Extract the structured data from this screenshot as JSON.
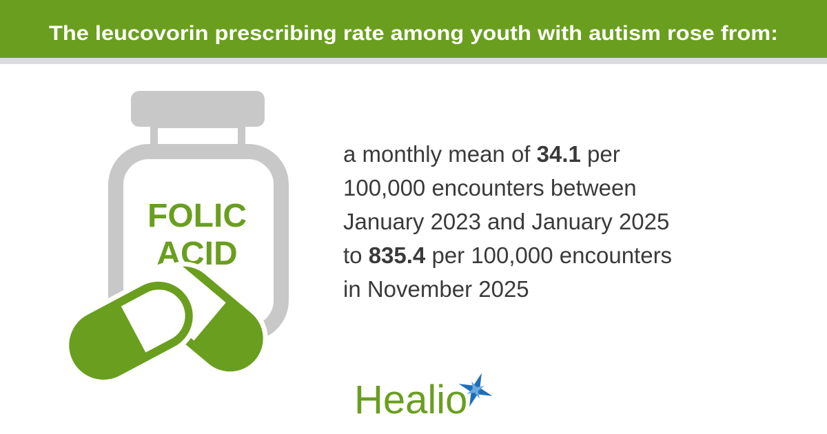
{
  "header": {
    "title": "The leucovorin prescribing rate among youth with autism rose from:"
  },
  "bottle": {
    "label": [
      "FOLIC",
      "ACID"
    ]
  },
  "body": {
    "lines": [
      [
        {
          "text": "a monthly mean of ",
          "bold": false
        },
        {
          "text": "34.1",
          "bold": true
        },
        {
          "text": " per",
          "bold": false
        }
      ],
      [
        {
          "text": "100,000 encounters between",
          "bold": false
        }
      ],
      [
        {
          "text": "January 2023 and January 2025",
          "bold": false
        }
      ],
      [
        {
          "text": "to ",
          "bold": false
        },
        {
          "text": "835.4",
          "bold": true
        },
        {
          "text": " per 100,000 encounters",
          "bold": false
        }
      ],
      [
        {
          "text": "in November 2025",
          "bold": false
        }
      ]
    ]
  },
  "logo": {
    "text": "Healio"
  }
}
